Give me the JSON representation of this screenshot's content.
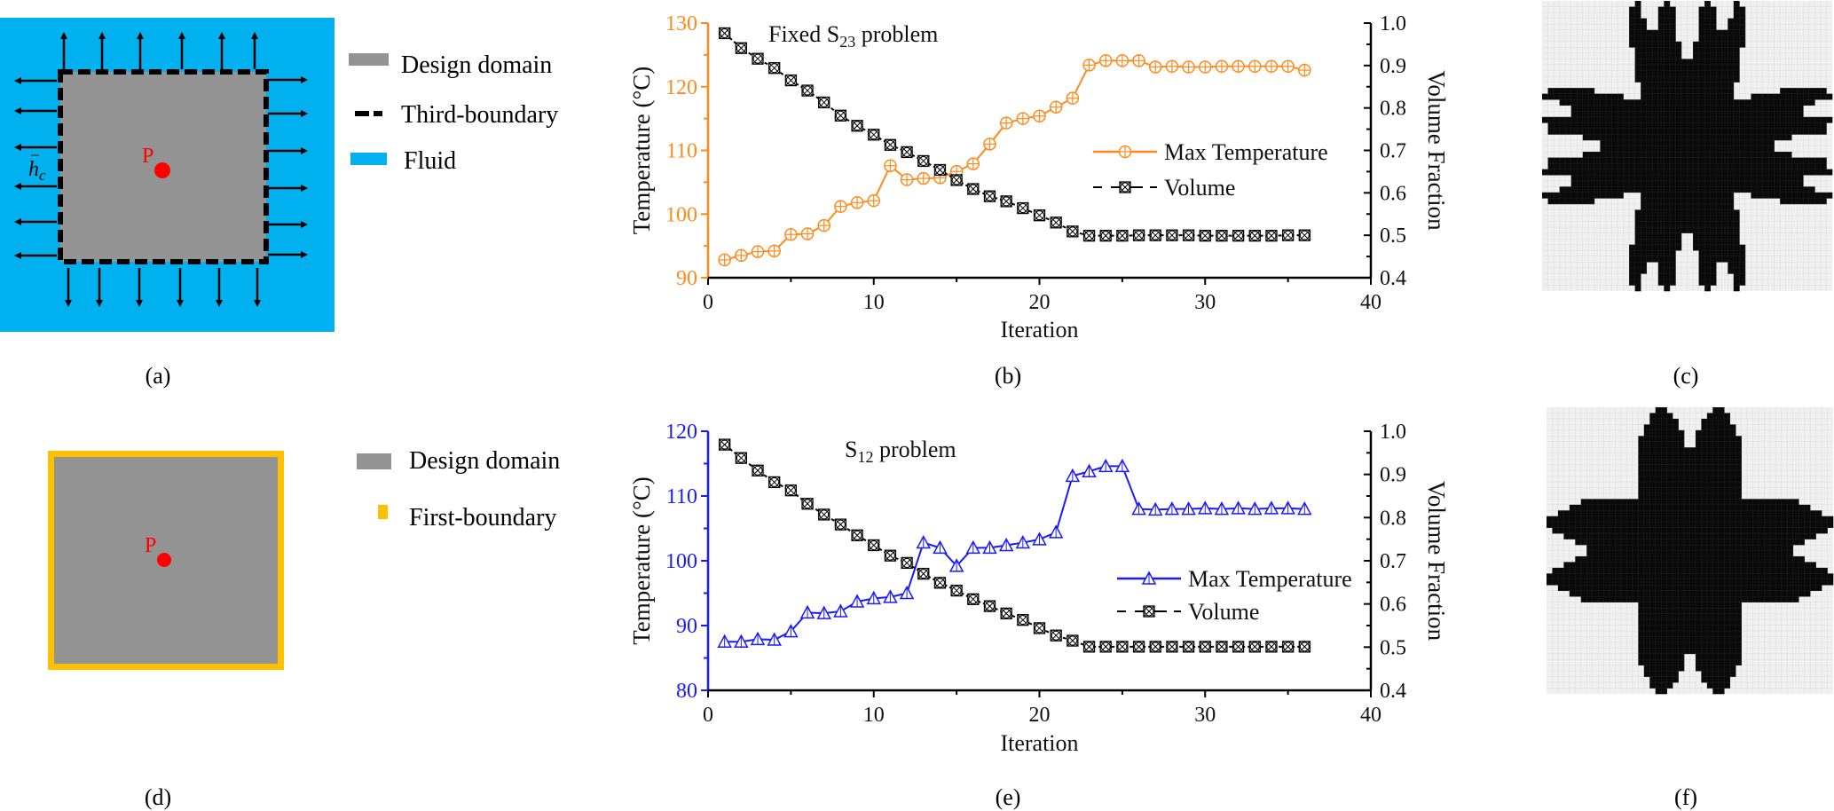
{
  "colors": {
    "fluid": "#00b0ef",
    "design_domain": "#939393",
    "boundary_dash": "#000000",
    "first_boundary": "#ffc000",
    "point_p": "#ff0000",
    "orange": "#ff8a1c",
    "blue": "#1a1aff",
    "volume": "#000000",
    "topology_solid": "#0a0a0a",
    "topology_void": "#f0f0f0"
  },
  "panels": {
    "a": {
      "label": "(a)",
      "point_label": "P",
      "hc_label": "h",
      "hc_subscript": "c",
      "legend": [
        {
          "key": "design_domain",
          "label": "Design domain"
        },
        {
          "key": "third_boundary",
          "label": "Third-boundary"
        },
        {
          "key": "fluid",
          "label": "Fluid"
        }
      ]
    },
    "d": {
      "label": "(d)",
      "point_label": "P",
      "legend": [
        {
          "key": "design_domain",
          "label": "Design domain"
        },
        {
          "key": "first_boundary",
          "label": "First-boundary"
        }
      ]
    },
    "c": {
      "label": "(c)"
    },
    "f": {
      "label": "(f)"
    },
    "b": {
      "label": "(b)"
    },
    "e": {
      "label": "(e)"
    }
  },
  "chart_data": [
    {
      "id": "b",
      "type": "line",
      "title": "Fixed S",
      "title_subscript": "23",
      "title_suffix": " problem",
      "xlabel": "Iteration",
      "ylabel": "Temperature (°C)",
      "y2label": "Volume Fraction",
      "xlim": [
        0,
        40
      ],
      "ylim": [
        90,
        130
      ],
      "y2lim": [
        0.4,
        1.0
      ],
      "xticks": [
        0,
        10,
        20,
        30,
        40
      ],
      "yticks": [
        90,
        100,
        110,
        120,
        130
      ],
      "y2ticks": [
        "0.4",
        "0.5",
        "0.6",
        "0.7",
        "0.8",
        "0.9",
        "1.0"
      ],
      "grid": false,
      "legend_position": "center-right",
      "x": [
        1,
        2,
        3,
        4,
        5,
        6,
        7,
        8,
        9,
        10,
        11,
        12,
        13,
        14,
        15,
        16,
        17,
        18,
        19,
        20,
        21,
        22,
        23,
        24,
        25,
        26,
        27,
        28,
        29,
        30,
        31,
        32,
        33,
        34,
        35,
        36
      ],
      "series": [
        {
          "name": "Max Temperature",
          "axis": "left",
          "marker": "circle-plus",
          "line": "solid",
          "color_key": "orange",
          "values": [
            92.8,
            93.5,
            94.1,
            94.2,
            96.8,
            96.9,
            98.2,
            101.2,
            101.8,
            102.1,
            107.6,
            105.4,
            105.6,
            105.7,
            106.7,
            107.9,
            111.0,
            114.3,
            115.0,
            115.4,
            116.8,
            118.2,
            123.4,
            124.1,
            124.1,
            124.1,
            123.1,
            123.2,
            123.1,
            123.1,
            123.2,
            123.2,
            123.2,
            123.2,
            123.2,
            122.6
          ]
        },
        {
          "name": "Volume",
          "axis": "right",
          "marker": "box-x",
          "line": "dashed",
          "color_key": "volume",
          "values": [
            0.976,
            0.941,
            0.916,
            0.894,
            0.865,
            0.841,
            0.813,
            0.782,
            0.758,
            0.737,
            0.713,
            0.696,
            0.675,
            0.654,
            0.63,
            0.609,
            0.592,
            0.58,
            0.564,
            0.547,
            0.53,
            0.509,
            0.499,
            0.499,
            0.499,
            0.5,
            0.5,
            0.5,
            0.5,
            0.499,
            0.499,
            0.499,
            0.499,
            0.499,
            0.5,
            0.5
          ]
        }
      ]
    },
    {
      "id": "e",
      "type": "line",
      "title": "S",
      "title_subscript": "12",
      "title_suffix": " problem",
      "xlabel": "Iteration",
      "ylabel": "Temperature (°C)",
      "y2label": "Volume Fraction",
      "xlim": [
        0,
        40
      ],
      "ylim": [
        80,
        120
      ],
      "y2lim": [
        0.4,
        1.0
      ],
      "xticks": [
        0,
        10,
        20,
        30,
        40
      ],
      "yticks": [
        80,
        90,
        100,
        110,
        120
      ],
      "y2ticks": [
        "0.4",
        "0.5",
        "0.6",
        "0.7",
        "0.8",
        "0.9",
        "1.0"
      ],
      "grid": false,
      "legend_position": "center-right",
      "x": [
        1,
        2,
        3,
        4,
        5,
        6,
        7,
        8,
        9,
        10,
        11,
        12,
        13,
        14,
        15,
        16,
        17,
        18,
        19,
        20,
        21,
        22,
        23,
        24,
        25,
        26,
        27,
        28,
        29,
        30,
        31,
        32,
        33,
        34,
        35,
        36
      ],
      "series": [
        {
          "name": "Max Temperature",
          "axis": "left",
          "marker": "triangle",
          "line": "solid",
          "color_key": "blue",
          "values": [
            87.5,
            87.5,
            87.9,
            87.8,
            89.1,
            92.0,
            91.9,
            92.2,
            93.7,
            94.2,
            94.4,
            95.0,
            102.8,
            102.0,
            99.2,
            102.0,
            102.0,
            102.4,
            102.8,
            103.3,
            104.4,
            113.1,
            113.8,
            114.6,
            114.6,
            108.0,
            107.9,
            108.0,
            108.0,
            108.1,
            108.0,
            108.1,
            108.0,
            108.1,
            108.1,
            108.0
          ]
        },
        {
          "name": "Volume",
          "axis": "right",
          "marker": "box-x",
          "line": "dashed",
          "color_key": "volume",
          "values": [
            0.969,
            0.938,
            0.909,
            0.882,
            0.863,
            0.832,
            0.807,
            0.784,
            0.759,
            0.736,
            0.712,
            0.695,
            0.67,
            0.649,
            0.631,
            0.611,
            0.595,
            0.578,
            0.563,
            0.544,
            0.527,
            0.515,
            0.501,
            0.501,
            0.501,
            0.501,
            0.501,
            0.501,
            0.501,
            0.501,
            0.501,
            0.501,
            0.501,
            0.501,
            0.501,
            0.501
          ]
        }
      ]
    }
  ],
  "topology": {
    "c": {
      "grid_size": 50,
      "half_rows": [
        [
          [
            16,
            16
          ],
          [
            21,
            21
          ],
          [
            28,
            28
          ],
          [
            33,
            33
          ]
        ],
        [
          [
            15,
            16
          ],
          [
            20,
            22
          ],
          [
            27,
            29
          ],
          [
            33,
            34
          ]
        ],
        [
          [
            15,
            16
          ],
          [
            20,
            22
          ],
          [
            27,
            29
          ],
          [
            33,
            34
          ]
        ],
        [
          [
            15,
            17
          ],
          [
            20,
            22
          ],
          [
            27,
            29
          ],
          [
            32,
            34
          ]
        ],
        [
          [
            15,
            17
          ],
          [
            20,
            22
          ],
          [
            27,
            29
          ],
          [
            32,
            34
          ]
        ],
        [
          [
            15,
            22
          ],
          [
            27,
            34
          ]
        ],
        [
          [
            15,
            22
          ],
          [
            27,
            34
          ]
        ],
        [
          [
            15,
            23
          ],
          [
            26,
            34
          ]
        ],
        [
          [
            16,
            23
          ],
          [
            26,
            33
          ]
        ],
        [
          [
            16,
            23
          ],
          [
            26,
            33
          ]
        ],
        [
          [
            16,
            33
          ]
        ],
        [
          [
            16,
            33
          ]
        ],
        [
          [
            16,
            33
          ]
        ],
        [
          [
            16,
            33
          ]
        ],
        [
          [
            17,
            32
          ]
        ],
        [
          [
            1,
            8
          ],
          [
            17,
            32
          ],
          [
            41,
            48
          ]
        ],
        [
          [
            0,
            13
          ],
          [
            17,
            32
          ],
          [
            36,
            49
          ]
        ],
        [
          [
            3,
            46
          ]
        ],
        [
          [
            5,
            44
          ]
        ],
        [
          [
            5,
            44
          ]
        ],
        [
          [
            0,
            49
          ]
        ],
        [
          [
            1,
            48
          ]
        ],
        [
          [
            1,
            48
          ]
        ],
        [
          [
            7,
            42
          ]
        ],
        [
          [
            10,
            39
          ]
        ]
      ]
    },
    "f": {
      "grid_size": 50,
      "half_rows": [
        [
          [
            19,
            20
          ],
          [
            29,
            30
          ]
        ],
        [
          [
            18,
            21
          ],
          [
            28,
            31
          ]
        ],
        [
          [
            18,
            22
          ],
          [
            27,
            31
          ]
        ],
        [
          [
            17,
            22
          ],
          [
            27,
            32
          ]
        ],
        [
          [
            17,
            23
          ],
          [
            26,
            32
          ]
        ],
        [
          [
            16,
            23
          ],
          [
            26,
            33
          ]
        ],
        [
          [
            16,
            23
          ],
          [
            26,
            33
          ]
        ],
        [
          [
            16,
            33
          ]
        ],
        [
          [
            16,
            33
          ]
        ],
        [
          [
            16,
            33
          ]
        ],
        [
          [
            16,
            33
          ]
        ],
        [
          [
            16,
            33
          ]
        ],
        [
          [
            16,
            33
          ]
        ],
        [
          [
            16,
            33
          ]
        ],
        [
          [
            16,
            33
          ]
        ],
        [
          [
            16,
            33
          ]
        ],
        [
          [
            6,
            43
          ]
        ],
        [
          [
            4,
            45
          ]
        ],
        [
          [
            2,
            47
          ]
        ],
        [
          [
            0,
            49
          ]
        ],
        [
          [
            0,
            49
          ]
        ],
        [
          [
            1,
            48
          ]
        ],
        [
          [
            3,
            46
          ]
        ],
        [
          [
            5,
            44
          ]
        ],
        [
          [
            7,
            42
          ]
        ]
      ]
    }
  }
}
